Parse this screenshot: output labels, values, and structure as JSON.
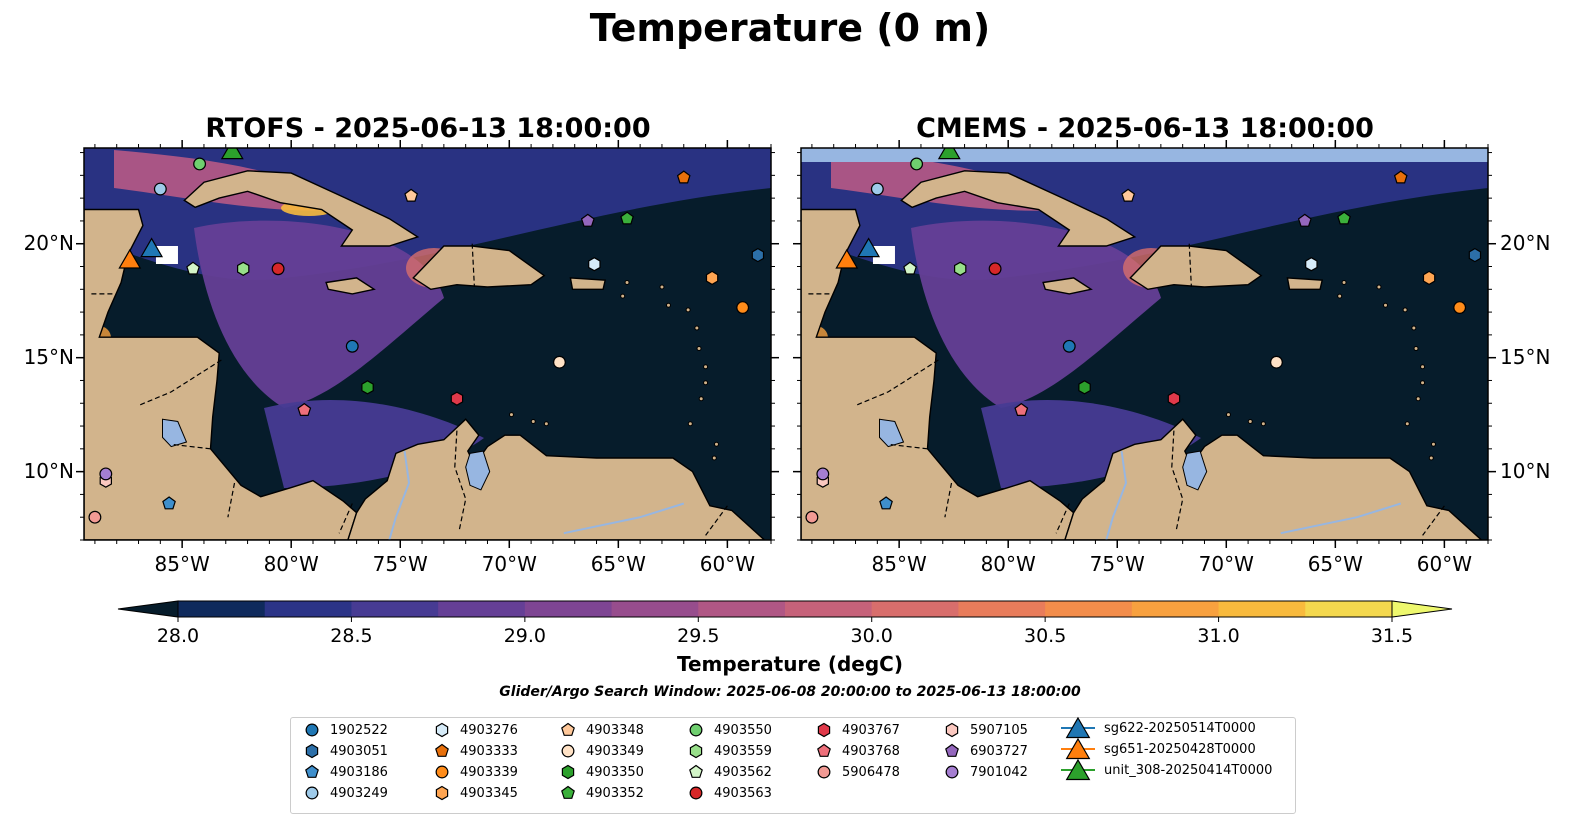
{
  "title": "Temperature (0 m)",
  "panels": [
    {
      "title": "RTOFS - 2025-06-13 18:00:00"
    },
    {
      "title": "CMEMS - 2025-06-13 18:00:00"
    }
  ],
  "map": {
    "lon_range": [
      -89.5,
      -58.0
    ],
    "lat_range": [
      7.0,
      24.2
    ],
    "x_ticks": [
      "85°W",
      "80°W",
      "75°W",
      "70°W",
      "65°W",
      "60°W"
    ],
    "y_ticks": [
      "20°N",
      "15°N",
      "10°N"
    ],
    "land_color": "#d2b48c",
    "lake_color": "#97b6e1",
    "coastline_color": "#000000"
  },
  "colorbar": {
    "label": "Temperature (degC)",
    "min": 28.0,
    "max": 31.5,
    "ticks": [
      "28.0",
      "28.5",
      "29.0",
      "29.5",
      "30.0",
      "30.5",
      "31.0",
      "31.5"
    ],
    "colormap": [
      "#061c2b",
      "#0f2a5c",
      "#2b3487",
      "#473b93",
      "#653f96",
      "#7e4593",
      "#974d8d",
      "#b05785",
      "#c6627a",
      "#d86e6c",
      "#e87c5b",
      "#f38d4b",
      "#f8a13f",
      "#f8ba3d",
      "#f4d84e",
      "#eef86e"
    ],
    "extend_low_color": "#061c2b",
    "extend_high_color": "#eef86e"
  },
  "search_window": "Glider/Argo Search Window: 2025-06-08 20:00:00 to 2025-06-13 18:00:00",
  "legend": [
    {
      "label": "1902522",
      "marker": "circle",
      "color": "#1f77b4"
    },
    {
      "label": "4903051",
      "marker": "hexagon",
      "color": "#2c6fa8"
    },
    {
      "label": "4903186",
      "marker": "pentagon",
      "color": "#3f8fcc"
    },
    {
      "label": "4903249",
      "marker": "circle",
      "color": "#9ecae9"
    },
    {
      "label": "4903276",
      "marker": "hexagon",
      "color": "#d6ebf8"
    },
    {
      "label": "4903333",
      "marker": "pentagon",
      "color": "#e8700b"
    },
    {
      "label": "4903339",
      "marker": "circle",
      "color": "#ff8c1a"
    },
    {
      "label": "4903345",
      "marker": "hexagon",
      "color": "#ffa552"
    },
    {
      "label": "4903348",
      "marker": "pentagon",
      "color": "#ffc89a"
    },
    {
      "label": "4903349",
      "marker": "circle",
      "color": "#ffe2c6"
    },
    {
      "label": "4903350",
      "marker": "hexagon",
      "color": "#2ca02c"
    },
    {
      "label": "4903352",
      "marker": "pentagon",
      "color": "#3bb03b"
    },
    {
      "label": "4903550",
      "marker": "circle",
      "color": "#6fcf6f"
    },
    {
      "label": "4903559",
      "marker": "hexagon",
      "color": "#98df8a"
    },
    {
      "label": "4903562",
      "marker": "pentagon",
      "color": "#d3f5c8"
    },
    {
      "label": "4903563",
      "marker": "circle",
      "color": "#d62728"
    },
    {
      "label": "4903767",
      "marker": "hexagon",
      "color": "#e0394a"
    },
    {
      "label": "4903768",
      "marker": "pentagon",
      "color": "#ee6f7a"
    },
    {
      "label": "5906478",
      "marker": "circle",
      "color": "#f29a94"
    },
    {
      "label": "5907105",
      "marker": "hexagon",
      "color": "#fbc8c0"
    },
    {
      "label": "6903727",
      "marker": "pentagon",
      "color": "#9467bd"
    },
    {
      "label": "7901042",
      "marker": "circle",
      "color": "#a57ed1"
    },
    {
      "label": "sg622-20250514T0000",
      "marker": "triangle",
      "color": "#1f77b4"
    },
    {
      "label": "sg651-20250428T0000",
      "marker": "triangle",
      "color": "#ff7f0e"
    },
    {
      "label": "unit_308-20250414T0000",
      "marker": "triangle",
      "color": "#2ca02c"
    }
  ],
  "floats": [
    {
      "id": "1902522",
      "lon": -77.2,
      "lat": 15.5
    },
    {
      "id": "4903051",
      "lon": -58.6,
      "lat": 19.5
    },
    {
      "id": "4903186",
      "lon": -85.6,
      "lat": 8.6
    },
    {
      "id": "4903249",
      "lon": -86.0,
      "lat": 22.4
    },
    {
      "id": "4903276",
      "lon": -66.1,
      "lat": 19.1
    },
    {
      "id": "4903333",
      "lon": -62.0,
      "lat": 22.9
    },
    {
      "id": "4903339",
      "lon": -59.3,
      "lat": 17.2
    },
    {
      "id": "4903345",
      "lon": -60.7,
      "lat": 18.5
    },
    {
      "id": "4903348",
      "lon": -74.5,
      "lat": 22.1
    },
    {
      "id": "4903349",
      "lon": -67.7,
      "lat": 14.8
    },
    {
      "id": "4903350",
      "lon": -76.5,
      "lat": 13.7
    },
    {
      "id": "4903352",
      "lon": -64.6,
      "lat": 21.1
    },
    {
      "id": "4903550",
      "lon": -84.2,
      "lat": 23.5
    },
    {
      "id": "4903559",
      "lon": -82.2,
      "lat": 18.9
    },
    {
      "id": "4903562",
      "lon": -84.5,
      "lat": 18.9
    },
    {
      "id": "4903563",
      "lon": -80.6,
      "lat": 18.9
    },
    {
      "id": "4903767",
      "lon": -72.4,
      "lat": 13.2
    },
    {
      "id": "4903768",
      "lon": -79.4,
      "lat": 12.7
    },
    {
      "id": "5906478",
      "lon": -89.0,
      "lat": 8.0
    },
    {
      "id": "5907105",
      "lon": -88.5,
      "lat": 9.6
    },
    {
      "id": "6903727",
      "lon": -66.4,
      "lat": 21.0
    },
    {
      "id": "7901042",
      "lon": -88.5,
      "lat": 9.9
    }
  ],
  "gliders": [
    {
      "id": "sg622-20250514T0000",
      "lon": -86.4,
      "lat": 19.7
    },
    {
      "id": "sg651-20250428T0000",
      "lon": -87.4,
      "lat": 19.2
    },
    {
      "id": "unit_308-20250414T0000",
      "lon": -82.7,
      "lat": 24.0
    }
  ]
}
